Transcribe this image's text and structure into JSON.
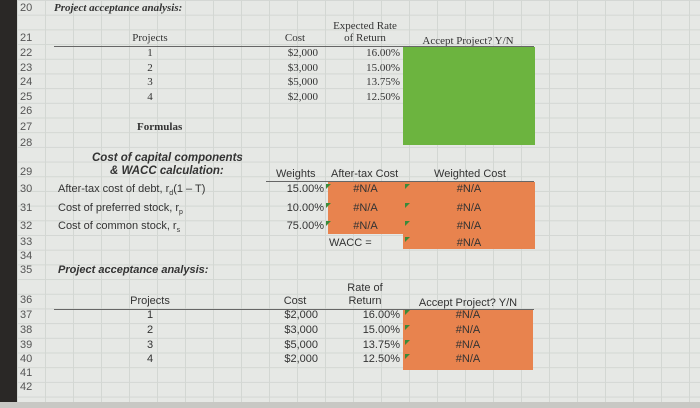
{
  "row_numbers": [
    "20",
    "21",
    "22",
    "23",
    "24",
    "25",
    "26",
    "27",
    "28",
    "29",
    "30",
    "31",
    "32",
    "33",
    "34",
    "35",
    "36",
    "37",
    "38",
    "39",
    "40",
    "41",
    "42"
  ],
  "top_section": {
    "title": "Project acceptance analysis:",
    "headers": {
      "projects": "Projects",
      "cost": "Cost",
      "rate_line1": "Expected Rate",
      "rate_line2": "of Return",
      "accept": "Accept Project?  Y/N"
    },
    "rows": [
      {
        "project": "1",
        "cost": "$2,000",
        "rate": "16.00%"
      },
      {
        "project": "2",
        "cost": "$3,000",
        "rate": "15.00%"
      },
      {
        "project": "3",
        "cost": "$5,000",
        "rate": "13.75%"
      },
      {
        "project": "4",
        "cost": "$2,000",
        "rate": "12.50%"
      }
    ],
    "formulas_label": "Formulas",
    "fill_color": "#6cb43f"
  },
  "wacc": {
    "title_line1": "Cost of capital components",
    "title_line2": "& WACC calculation:",
    "headers": {
      "weights": "Weights",
      "after_tax": "After-tax Cost",
      "weighted": "Weighted Cost"
    },
    "rows": [
      {
        "label": "After-tax cost of debt, r",
        "sub": "d",
        "suffix": "(1 – T)",
        "weight": "15.00%",
        "after_tax": "#N/A",
        "weighted": "#N/A"
      },
      {
        "label": "Cost of preferred stock, r",
        "sub": "p",
        "suffix": "",
        "weight": "10.00%",
        "after_tax": "#N/A",
        "weighted": "#N/A"
      },
      {
        "label": "Cost of common stock, r",
        "sub": "s",
        "suffix": "",
        "weight": "75.00%",
        "after_tax": "#N/A",
        "weighted": "#N/A"
      }
    ],
    "wacc_label": "WACC =",
    "wacc_value": "#N/A",
    "fill_color": "#e8834e"
  },
  "bottom_section": {
    "title": "Project acceptance analysis:",
    "headers": {
      "projects": "Projects",
      "cost": "Cost",
      "rate_line1": "Rate of",
      "rate_line2": "Return",
      "accept": "Accept Project?  Y/N"
    },
    "rows": [
      {
        "project": "1",
        "cost": "$2,000",
        "rate": "16.00%",
        "accept": "#N/A"
      },
      {
        "project": "2",
        "cost": "$3,000",
        "rate": "15.00%",
        "accept": "#N/A"
      },
      {
        "project": "3",
        "cost": "$5,000",
        "rate": "13.75%",
        "accept": "#N/A"
      },
      {
        "project": "4",
        "cost": "$2,000",
        "rate": "12.50%",
        "accept": "#N/A"
      }
    ]
  }
}
